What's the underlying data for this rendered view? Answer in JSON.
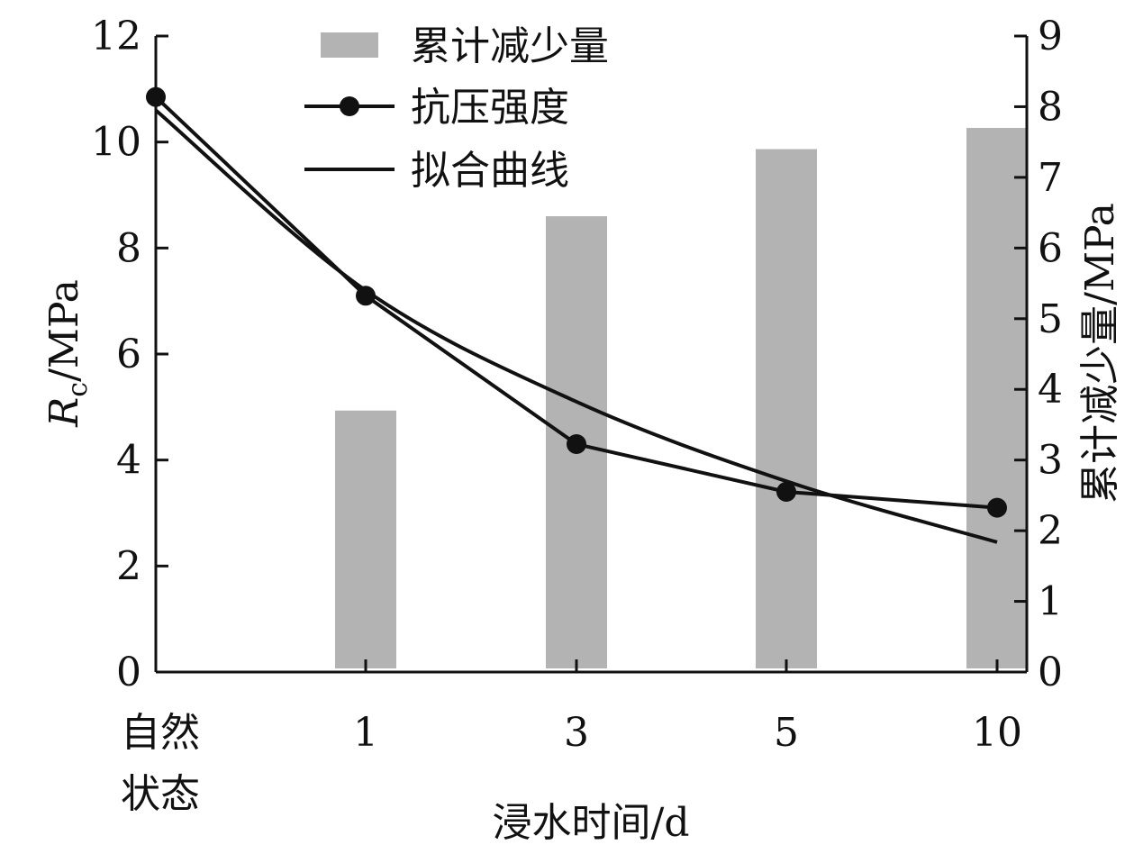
{
  "chart_data": {
    "type": "bar+line",
    "categories": [
      "自然\n状态",
      "1",
      "3",
      "5",
      "10"
    ],
    "xlabel": "浸水时间/d",
    "ylabel_left": {
      "italic": "R",
      "sub": "c",
      "rest": "/MPa"
    },
    "ylabel_right": "累计减少量/MPa",
    "ylim_left": [
      0,
      12
    ],
    "ylim_right": [
      0,
      9
    ],
    "yticks_left": [
      0,
      2,
      4,
      6,
      8,
      10,
      12
    ],
    "yticks_right": [
      0,
      1,
      2,
      3,
      4,
      5,
      6,
      7,
      8,
      9
    ],
    "series": [
      {
        "name": "累计减少量",
        "kind": "bar",
        "axis": "right",
        "values": [
          null,
          3.7,
          6.45,
          7.4,
          7.7
        ]
      },
      {
        "name": "抗压强度",
        "kind": "line-marker",
        "axis": "left",
        "values": [
          10.85,
          7.1,
          4.3,
          3.4,
          3.1
        ]
      },
      {
        "name": "拟合曲线",
        "kind": "line",
        "axis": "left",
        "values": [
          10.6,
          7.2,
          5.1,
          3.6,
          2.45
        ]
      }
    ],
    "legend_position": "top-center",
    "grid": false,
    "colors": {
      "bar": "#b3b3b3",
      "line": "#111111",
      "marker": "#111111"
    }
  }
}
